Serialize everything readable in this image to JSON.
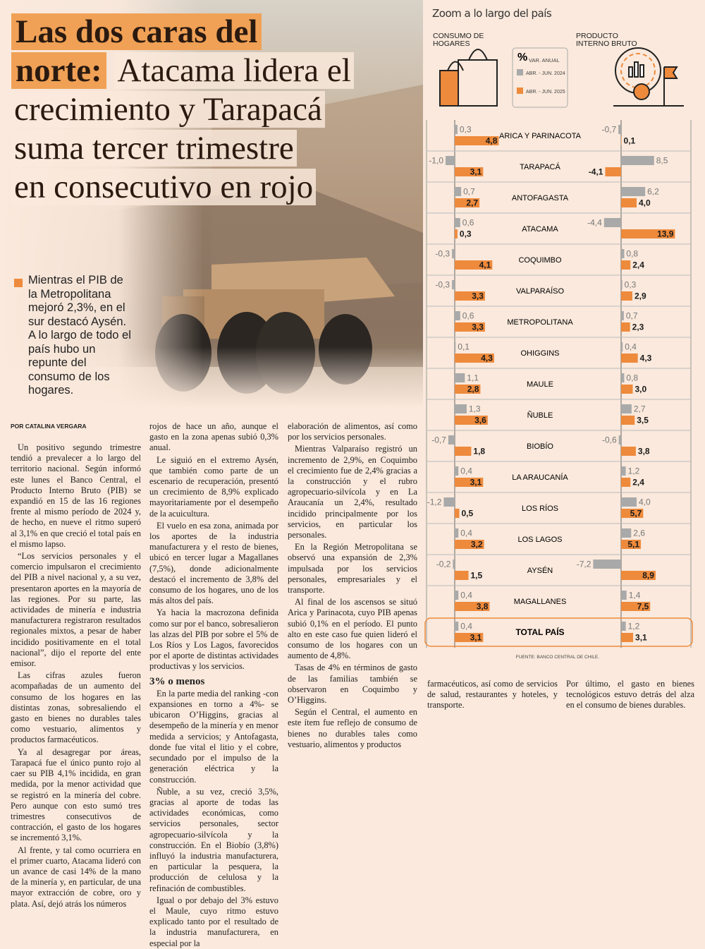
{
  "headline": {
    "highlight": [
      "Las dos caras del",
      "norte:"
    ],
    "rest": [
      "Atacama lidera el",
      "crecimiento y Tarapacá",
      "suma tercer trimestre",
      "en consecutivo en rojo"
    ]
  },
  "lead": "Mientras el PIB de la Metropolitana mejoró 2,3%, en el sur destacó Aysén. A lo largo de todo el país hubo un repunte del consumo de los hogares.",
  "byline": "POR CATALINA VERGARA",
  "article": {
    "columns": [
      [
        {
          "p": "Un positivo segundo trimestre tendió a prevalecer a lo largo del territorio nacional. Según informó este lunes el Banco Central, el Producto Interno Bruto (PIB) se expandió en 15 de las 16 regiones frente al mismo período de 2024 y, de hecho, en nueve el ritmo superó al 3,1% en que creció el total país en el mismo lapso."
        },
        {
          "p": "“Los servicios personales y el comercio impulsaron el crecimiento del PIB a nivel nacional y, a su vez, presentaron aportes en la mayoría de las regiones. Por su parte, las actividades de minería e industria manufacturera registraron resultados regionales mixtos, a pesar de haber incidido positivamente en el total nacional”, dijo el reporte del ente emisor."
        },
        {
          "p": "Las cifras azules fueron acompañadas de un aumento del consumo de los hogares en las distintas zonas, sobresaliendo el gasto en bienes no durables tales como vestuario, alimentos y productos farmacéuticos."
        },
        {
          "p": "Ya al desagregar por áreas, Tarapacá fue el único punto rojo al caer su PIB 4,1% incidida, en gran medida, por la menor actividad que se registró en la minería del cobre. Pero aunque con esto sumó tres trimestres consecutivos de contracción, el gasto de los hogares se incrementó 3,1%."
        },
        {
          "p": "Al frente, y tal como ocurriera en el primer cuarto, Atacama lideró con un avance de casi 14% de la mano de la minería y, en particular, de una mayor extracción de cobre, oro y plata. Así, dejó atrás los números"
        }
      ],
      [
        {
          "p": "rojos de hace un año, aunque el gasto en la zona apenas subió 0,3% anual."
        },
        {
          "p": "Le siguió en el extremo Aysén, que también como parte de un escenario de recuperación, presentó un crecimiento de 8,9% explicado mayoritariamente por el desempeño de la acuicultura."
        },
        {
          "p": "El vuelo en esa zona, animada por los aportes de la industria manufacturera y el resto de bienes, ubicó en tercer lugar a Magallanes (7,5%), donde adicionalmente destacó el incremento de 3,8% del consumo de los hogares, uno de los más altos del país."
        },
        {
          "p": "Ya hacia la macrozona definida como sur por el banco, sobresalieron las alzas del PIB por sobre el 5% de Los Ríos y Los Lagos, favorecidos por el aporte de distintas actividades productivas y los servicios."
        },
        {
          "h": "3% o menos"
        },
        {
          "p": "En la parte media del ranking -con expansiones en torno a 4%- se ubicaron O’Higgins, gracias al desempeño de la minería y en menor medida a servicios; y Antofagasta, donde fue vital el litio y el cobre, secundado por el impulso de la generación eléctrica y la construcción."
        },
        {
          "p": "Ñuble, a su vez, creció 3,5%, gracias al aporte de todas las actividades económicas, como servicios personales, sector agropecuario-silvícola y la construcción. En el Biobío (3,8%) influyó la industria manufacturera, en particular la pesquera, la producción de celulosa y la refinación de combustibles."
        },
        {
          "p": "Igual o por debajo del 3% estuvo el Maule, cuyo ritmo estuvo explicado tanto por el resultado de la industria manufacturera, en especial por la"
        }
      ],
      [
        {
          "p": "elaboración de alimentos, así como por los servicios personales."
        },
        {
          "p": "Mientras Valparaíso registró un incremento de 2,9%, en Coquimbo el crecimiento fue de 2,4% gracias a la construcción y el rubro agropecuario-silvícola y en La Araucanía un 2,4%, resultado incidido principalmente por los servicios, en particular los personales."
        },
        {
          "p": "En la Región Metropolitana se observó una expansión de 2,3% impulsada por los servicios personales, empresariales y el transporte."
        },
        {
          "p": "Al final de los ascensos se situó Arica y Parinacota, cuyo PIB apenas subió 0,1% en el período. El punto alto en este caso fue quien lideró el consumo de los hogares con un aumento de 4,8%."
        },
        {
          "p": "Tasas de 4% en términos de gasto de las familias también se observaron en Coquimbo y O’Higgins."
        },
        {
          "p": "Según el Central, el aumento en este ítem fue reflejo de consumo de bienes no durables tales como vestuario, alimentos y productos"
        }
      ],
      [
        {
          "p": "farmacéuticos, así como de servicios de salud, restaurantes y hoteles, y transporte."
        }
      ],
      [
        {
          "p": "Por último, el gasto en bienes tecnológicos estuvo detrás del alza en el consumo de bienes durables."
        }
      ]
    ]
  },
  "chart_data": {
    "type": "bar",
    "title": "Zoom a lo largo del país",
    "unit": "%",
    "unit_note": "VAR. ANUAL",
    "source": "FUENTE: BANCO CENTRAL DE CHILE.",
    "categories": [
      "ARICA Y PARINACOTA",
      "TARAPACÁ",
      "ANTOFAGASTA",
      "ATACAMA",
      "COQUIMBO",
      "VALPARAÍSO",
      "METROPOLITANA",
      "OHIGGINS",
      "MAULE",
      "ÑUBLE",
      "BIOBÍO",
      "LA ARAUCANÍA",
      "LOS RÍOS",
      "LOS LAGOS",
      "AYSÉN",
      "MAGALLANES",
      "TOTAL PAÍS"
    ],
    "series": [
      {
        "name": "ABR. - JUN. 2024",
        "color": "#a9a9a9"
      },
      {
        "name": "ABR. - JUN. 2025",
        "color": "#ee8a3c"
      }
    ],
    "panels": [
      {
        "title": "CONSUMO DE HOGARES",
        "values": [
          [
            0.3,
            -1.0,
            0.7,
            0.6,
            -0.3,
            -0.3,
            0.6,
            0.1,
            1.1,
            1.3,
            -0.7,
            0.4,
            -1.2,
            0.4,
            -0.2,
            0.4,
            0.4
          ],
          [
            4.8,
            3.1,
            2.7,
            0.3,
            4.1,
            3.3,
            3.3,
            4.3,
            2.8,
            3.6,
            1.8,
            3.1,
            0.5,
            3.2,
            1.5,
            3.8,
            3.1
          ]
        ],
        "value_labels": [
          [
            "0,3",
            "-1,0",
            "0,7",
            "0,6",
            "-0,3",
            "-0,3",
            "0,6",
            "0,1",
            "1,1",
            "1,3",
            "-0,7",
            "0,4",
            "-1,2",
            "0,4",
            "-0,2",
            "0,4",
            "0,4"
          ],
          [
            "4,8",
            "3,1",
            "2,7",
            "0,3",
            "4,1",
            "3,3",
            "3,3",
            "4,3",
            "2,8",
            "3,6",
            "1,8",
            "3,1",
            "0,5",
            "3,2",
            "1,5",
            "3,8",
            "3,1"
          ]
        ]
      },
      {
        "title": "PRODUCTO INTERNO BRUTO",
        "values": [
          [
            -0.7,
            8.5,
            6.2,
            -4.4,
            0.8,
            0.3,
            0.7,
            0.4,
            0.8,
            2.7,
            -0.6,
            1.2,
            4.0,
            2.6,
            -7.2,
            1.4,
            1.2
          ],
          [
            0.1,
            -4.1,
            4.0,
            13.9,
            2.4,
            2.9,
            2.3,
            4.3,
            3.0,
            3.5,
            3.8,
            2.4,
            5.7,
            5.1,
            8.9,
            7.5,
            3.1
          ]
        ],
        "value_labels": [
          [
            "-0,7",
            "8,5",
            "6,2",
            "-4,4",
            "0,8",
            "0,3",
            "0,7",
            "0,4",
            "0,8",
            "2,7",
            "-0,6",
            "1,2",
            "4,0",
            "2,6",
            "-7,2",
            "1,4",
            "1,2"
          ],
          [
            "0,1",
            "-4,1",
            "4,0",
            "13,9",
            "2,4",
            "2,9",
            "2,3",
            "4,3",
            "3,0",
            "3,5",
            "3,8",
            "2,4",
            "5,7",
            "5,1",
            "8,9",
            "7,5",
            "3,1"
          ]
        ]
      }
    ]
  }
}
